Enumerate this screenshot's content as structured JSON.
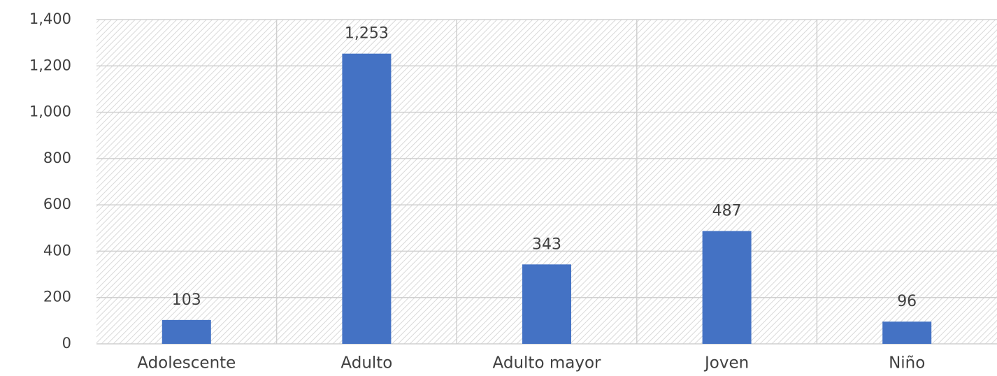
{
  "chart_data": {
    "type": "bar",
    "categories": [
      "Adolescente",
      "Adulto",
      "Adulto mayor",
      "Joven",
      "Niño"
    ],
    "values": [
      103,
      1253,
      343,
      487,
      96
    ],
    "value_labels": [
      "103",
      "1,253",
      "343",
      "487",
      "96"
    ],
    "color": "#4472c4",
    "ylim": [
      0,
      1400
    ],
    "yticks": [
      0,
      200,
      400,
      600,
      800,
      {
        "value": 1000,
        "label": "1,000"
      },
      {
        "value": 1200,
        "label": "1,200"
      },
      {
        "value": 1400,
        "label": "1,400"
      }
    ],
    "grid": true
  }
}
